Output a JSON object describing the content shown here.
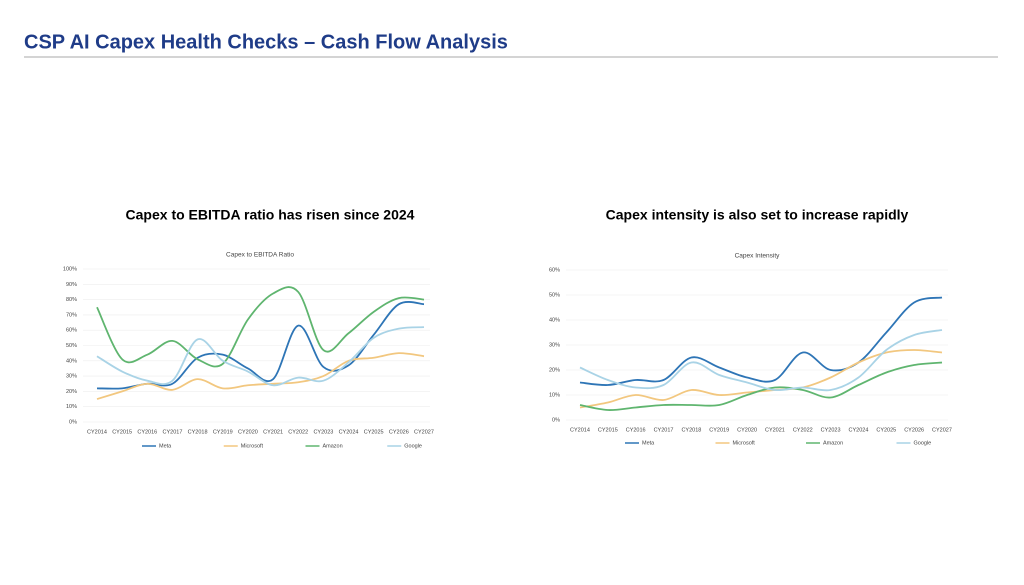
{
  "page": {
    "title": "CSP AI Capex Health Checks – Cash Flow Analysis"
  },
  "chart_data": [
    {
      "type": "line",
      "headline": "Capex to EBITDA ratio has risen since 2024",
      "title": "Capex to EBITDA Ratio",
      "categories": [
        "CY2014",
        "CY2015",
        "CY2016",
        "CY2017",
        "CY2018",
        "CY2019",
        "CY2020",
        "CY2021",
        "CY2022",
        "CY2023",
        "CY2024",
        "CY2025",
        "CY2026",
        "CY2027"
      ],
      "series": [
        {
          "name": "Meta",
          "color": "#2e75b6",
          "values": [
            22,
            22,
            25,
            25,
            42,
            44,
            35,
            28,
            63,
            36,
            37,
            57,
            77,
            77
          ]
        },
        {
          "name": "Microsoft",
          "color": "#f2c77f",
          "values": [
            15,
            20,
            25,
            21,
            28,
            22,
            24,
            25,
            26,
            30,
            40,
            42,
            45,
            43
          ]
        },
        {
          "name": "Amazon",
          "color": "#5fb56f",
          "values": [
            75,
            41,
            44,
            53,
            41,
            38,
            67,
            84,
            85,
            47,
            58,
            72,
            81,
            80
          ]
        },
        {
          "name": "Google",
          "color": "#a9d3e6",
          "values": [
            43,
            33,
            27,
            27,
            54,
            40,
            33,
            24,
            29,
            27,
            39,
            55,
            61,
            62
          ]
        }
      ],
      "ylim": [
        0,
        100
      ],
      "yticks": [
        {
          "value": 0,
          "label": "0%"
        },
        {
          "value": 10,
          "label": "10%"
        },
        {
          "value": 20,
          "label": "20%"
        },
        {
          "value": 30,
          "label": "30%"
        },
        {
          "value": 40,
          "label": "40%"
        },
        {
          "value": 50,
          "label": "50%"
        },
        {
          "value": 60,
          "label": "60%"
        },
        {
          "value": 70,
          "label": "70%"
        },
        {
          "value": 80,
          "label": "80%"
        },
        {
          "value": 90,
          "label": "90%"
        },
        {
          "value": 100,
          "label": "100%"
        }
      ]
    },
    {
      "type": "line",
      "headline": "Capex intensity is also set to increase rapidly",
      "title": "Capex Intensity",
      "categories": [
        "CY2014",
        "CY2015",
        "CY2016",
        "CY2017",
        "CY2018",
        "CY2019",
        "CY2020",
        "CY2021",
        "CY2022",
        "CY2023",
        "CY2024",
        "CY2025",
        "CY2026",
        "CY2027"
      ],
      "series": [
        {
          "name": "Meta",
          "color": "#2e75b6",
          "values": [
            15,
            14,
            16,
            16,
            25,
            21,
            17,
            16,
            27,
            20,
            23,
            35,
            47,
            49
          ]
        },
        {
          "name": "Microsoft",
          "color": "#f2c77f",
          "values": [
            5,
            7,
            10,
            8,
            12,
            10,
            11,
            12,
            13,
            17,
            23,
            27,
            28,
            27
          ]
        },
        {
          "name": "Amazon",
          "color": "#5fb56f",
          "values": [
            6,
            4,
            5,
            6,
            6,
            6,
            10,
            13,
            12,
            9,
            14,
            19,
            22,
            23
          ]
        },
        {
          "name": "Google",
          "color": "#a9d3e6",
          "values": [
            21,
            16,
            13,
            14,
            23,
            18,
            15,
            12,
            13,
            12,
            17,
            28,
            34,
            36
          ]
        }
      ],
      "ylim": [
        0,
        60
      ],
      "yticks": [
        {
          "value": 0,
          "label": "0%"
        },
        {
          "value": 10,
          "label": "10%"
        },
        {
          "value": 20,
          "label": "20%"
        },
        {
          "value": 30,
          "label": "30%"
        },
        {
          "value": 40,
          "label": "40%"
        },
        {
          "value": 50,
          "label": "50%"
        },
        {
          "value": 60,
          "label": "60%"
        }
      ]
    }
  ]
}
